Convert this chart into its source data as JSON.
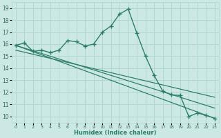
{
  "title": "",
  "xlabel": "Humidex (Indice chaleur)",
  "bg_color": "#cce8e4",
  "grid_color": "#b0d8d0",
  "line_color": "#2d7d6b",
  "xlim": [
    -0.5,
    23.5
  ],
  "ylim": [
    9.5,
    19.5
  ],
  "yticks": [
    10,
    11,
    12,
    13,
    14,
    15,
    16,
    17,
    18,
    19
  ],
  "xticks": [
    0,
    1,
    2,
    3,
    4,
    5,
    6,
    7,
    8,
    9,
    10,
    11,
    12,
    13,
    14,
    15,
    16,
    17,
    18,
    19,
    20,
    21,
    22,
    23
  ],
  "main_x": [
    0,
    1,
    2,
    3,
    4,
    5,
    6,
    7,
    8,
    9,
    10,
    11,
    12,
    13,
    14,
    15,
    16,
    17,
    18,
    19,
    20,
    21,
    22,
    23
  ],
  "main_y": [
    15.9,
    16.1,
    15.4,
    15.5,
    15.3,
    15.5,
    16.3,
    16.2,
    15.85,
    16.0,
    17.0,
    17.5,
    18.5,
    18.9,
    16.9,
    15.0,
    13.4,
    12.1,
    11.8,
    11.75,
    10.0,
    10.3,
    10.1,
    9.85
  ],
  "trend1_x": [
    0,
    23
  ],
  "trend1_y": [
    15.9,
    9.85
  ],
  "trend2_x": [
    0,
    23
  ],
  "trend2_y": [
    15.9,
    10.7
  ],
  "trend3_x": [
    0,
    23
  ],
  "trend3_y": [
    15.5,
    11.6
  ]
}
